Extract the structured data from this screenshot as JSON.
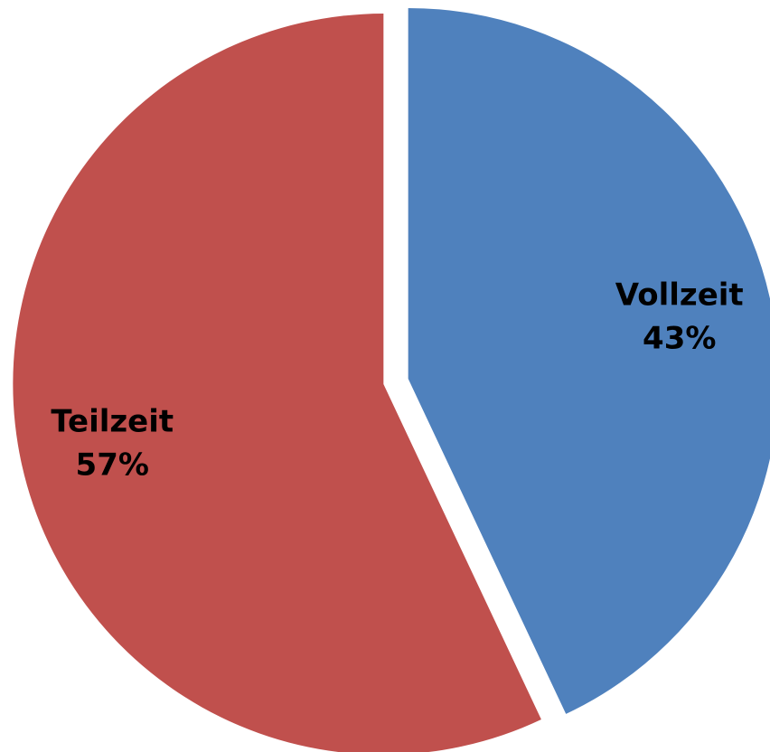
{
  "chart_data": {
    "type": "pie",
    "categories": [
      "Vollzeit",
      "Teilzeit"
    ],
    "values": [
      43,
      57
    ],
    "value_labels": [
      "43%",
      "57%"
    ],
    "colors": [
      "#4f81bd",
      "#c0504d"
    ]
  }
}
